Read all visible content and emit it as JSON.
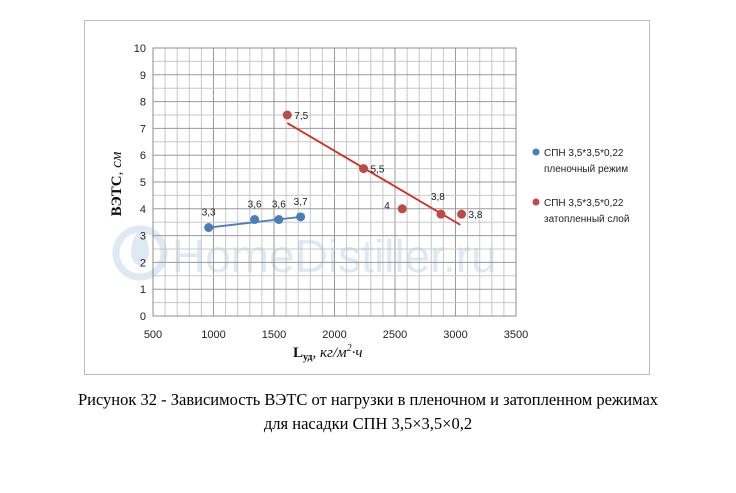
{
  "chart_data": {
    "type": "scatter",
    "xlim": [
      500,
      3500
    ],
    "ylim": [
      0,
      10
    ],
    "x_ticks": [
      "500",
      "1000",
      "1500",
      "2000",
      "2500",
      "3000",
      "3500"
    ],
    "y_ticks": [
      "0",
      "1",
      "2",
      "3",
      "4",
      "5",
      "6",
      "7",
      "8",
      "9",
      "10"
    ],
    "grid": true,
    "xlabel_main": "L",
    "xlabel_sub": "уд",
    "xlabel_units": ", кг/м",
    "xlabel_sup": "2",
    "xlabel_tail": "·ч",
    "ylabel_main": "ВЭТС",
    "ylabel_units": ", см",
    "legend_position": "right",
    "series": [
      {
        "name": "СПН 3,5*3,5*0,22 пленочный режим",
        "legend_lines": [
          "СПН 3,5*3,5*0,22",
          "пленочный режим"
        ],
        "color": "#4a7ebb",
        "x": [
          960,
          1340,
          1540,
          1720
        ],
        "y": [
          3.3,
          3.6,
          3.6,
          3.7
        ],
        "labels": [
          "3,3",
          "3,6",
          "3,6",
          "3,7"
        ],
        "fit": {
          "x": [
            960,
            1720
          ],
          "y": [
            3.3,
            3.7
          ]
        }
      },
      {
        "name": "СПН 3,5*3,5*0,22 затопленный слой",
        "legend_lines": [
          "СПН 3,5*3,5*0,22",
          "затопленный слой"
        ],
        "color": "#be4b48",
        "x": [
          1610,
          2240,
          2560,
          2880,
          3050
        ],
        "y": [
          7.5,
          5.5,
          4.0,
          3.8,
          3.8
        ],
        "labels": [
          "7,5",
          "5,5",
          "4",
          "3,8",
          "3,8"
        ],
        "fit": {
          "x": [
            1610,
            3040
          ],
          "y": [
            7.2,
            3.4
          ]
        },
        "fit_color": "#d62b1f"
      }
    ]
  },
  "watermark": "HomeDistiller.ru",
  "caption": {
    "line1": "Рисунок 32 - Зависимость ВЭТС от нагрузки в пленочном и затопленном режимах",
    "line2": "для насадки СПН 3,5×3,5×0,2"
  }
}
